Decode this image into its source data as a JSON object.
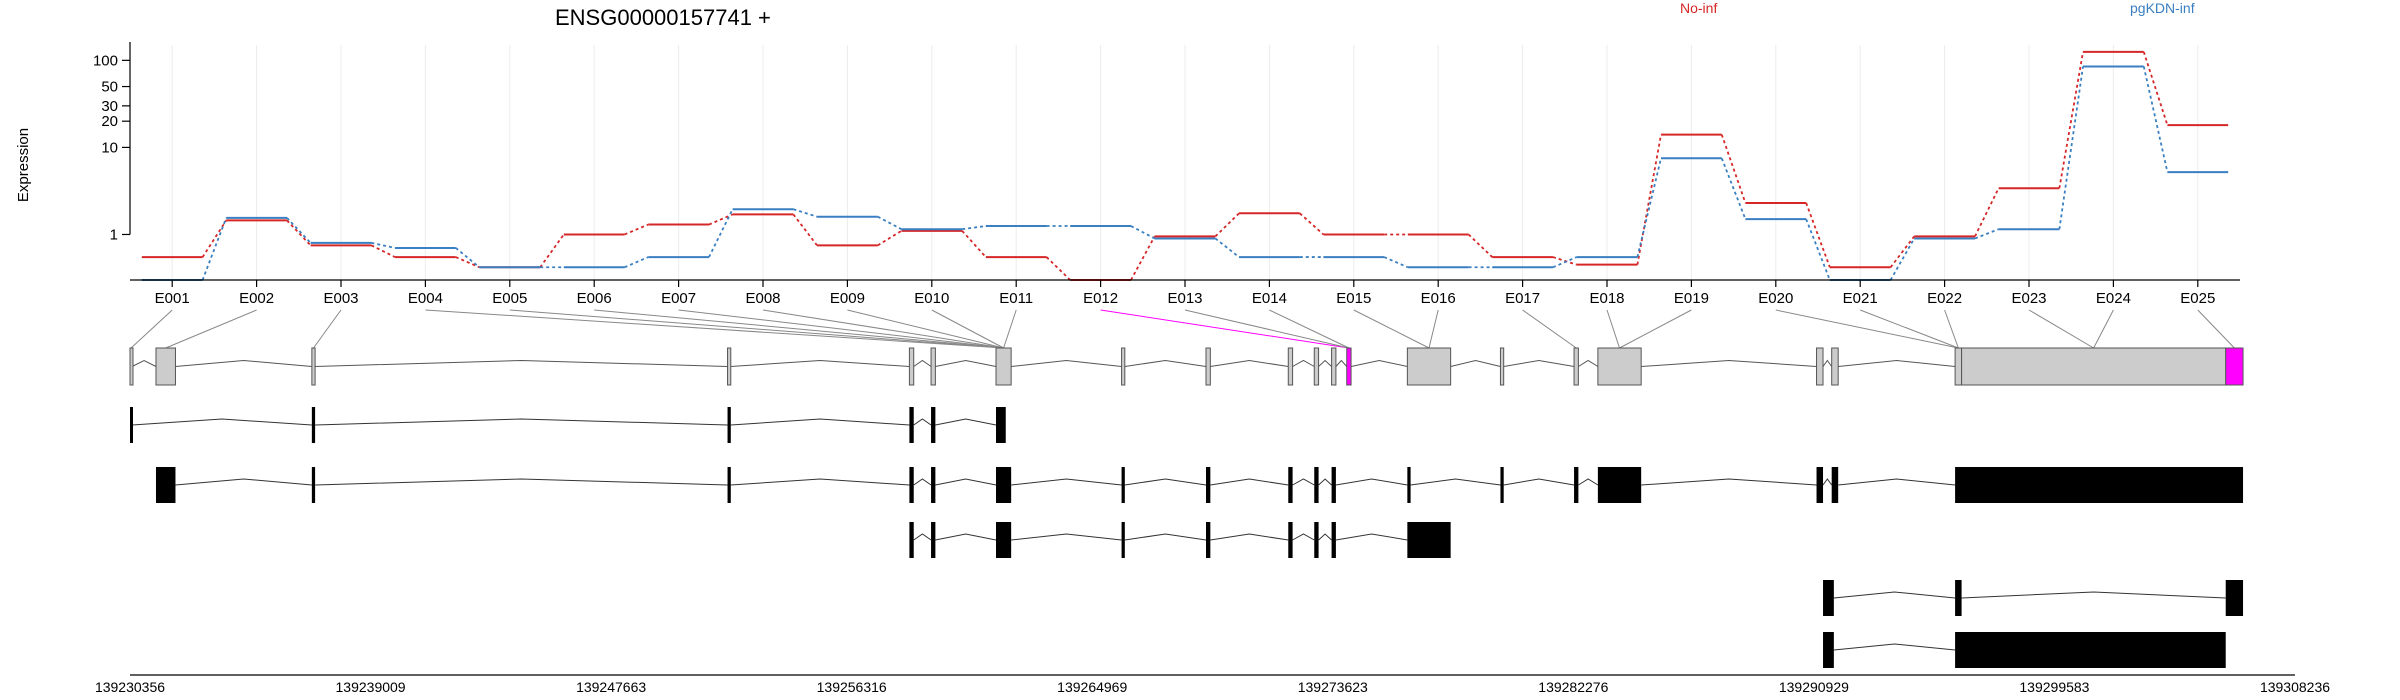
{
  "title": "ENSG00000157741 +",
  "ylabel": "Expression",
  "legend": [
    {
      "name": "No-inf",
      "color": "#d62728"
    },
    {
      "name": "pgKDN-inf",
      "color": "#3a7fc1"
    }
  ],
  "highlight_color": "#ff00ff",
  "chart_data": {
    "type": "line",
    "scale_y": "log",
    "ylim": [
      0.3,
      150
    ],
    "y_ticks": [
      1,
      10,
      20,
      30,
      50,
      100
    ],
    "grid": "vertical",
    "categories": [
      "E001",
      "E002",
      "E003",
      "E004",
      "E005",
      "E006",
      "E007",
      "E008",
      "E009",
      "E010",
      "E011",
      "E012",
      "E013",
      "E014",
      "E015",
      "E016",
      "E017",
      "E018",
      "E019",
      "E020",
      "E021",
      "E022",
      "E023",
      "E024",
      "E025"
    ],
    "series": [
      {
        "name": "No-inf",
        "color": "#d62728",
        "values": [
          0.55,
          1.45,
          0.75,
          0.55,
          0.42,
          1.0,
          1.3,
          1.7,
          0.75,
          1.1,
          0.55,
          0.3,
          0.95,
          1.75,
          1.0,
          1.0,
          0.55,
          0.45,
          14.0,
          2.3,
          0.42,
          0.95,
          3.4,
          125,
          18
        ]
      },
      {
        "name": "pgKDN-inf",
        "color": "#3a7fc1",
        "values": [
          0.3,
          1.55,
          0.8,
          0.7,
          0.42,
          0.42,
          0.55,
          1.95,
          1.6,
          1.15,
          1.25,
          1.25,
          0.9,
          0.55,
          0.55,
          0.42,
          0.42,
          0.55,
          7.5,
          1.5,
          0.3,
          0.9,
          1.15,
          85,
          5.2
        ]
      }
    ],
    "highlighted_exon": "E012",
    "genomic_coordinates": [
      "139230356",
      "139239009",
      "139247663",
      "139256316",
      "139264969",
      "139273623",
      "139282276",
      "139290929",
      "139299583",
      "139308236"
    ],
    "gene_model_exons": [
      {
        "start": 0.0,
        "end": 0.001
      },
      {
        "start": 0.012,
        "end": 0.021
      },
      {
        "start": 0.084,
        "end": 0.0855
      },
      {
        "start": 0.276,
        "end": 0.2775
      },
      {
        "start": 0.36,
        "end": 0.362
      },
      {
        "start": 0.37,
        "end": 0.372
      },
      {
        "start": 0.4,
        "end": 0.407
      },
      {
        "start": 0.458,
        "end": 0.4595
      },
      {
        "start": 0.497,
        "end": 0.499
      },
      {
        "start": 0.535,
        "end": 0.537
      },
      {
        "start": 0.547,
        "end": 0.549
      },
      {
        "start": 0.555,
        "end": 0.557
      },
      {
        "start": 0.562,
        "end": 0.564
      },
      {
        "start": 0.59,
        "end": 0.61
      },
      {
        "start": 0.633,
        "end": 0.6345
      },
      {
        "start": 0.667,
        "end": 0.669
      },
      {
        "start": 0.678,
        "end": 0.698
      },
      {
        "start": 0.779,
        "end": 0.782
      },
      {
        "start": 0.786,
        "end": 0.789
      },
      {
        "start": 0.843,
        "end": 0.846
      },
      {
        "start": 0.846,
        "end": 0.968
      },
      {
        "start": 0.968,
        "end": 0.976
      }
    ],
    "transcripts": [
      {
        "exons": [
          [
            0.0,
            0.001
          ],
          [
            0.084,
            0.0855
          ],
          [
            0.276,
            0.2775
          ],
          [
            0.36,
            0.362
          ],
          [
            0.37,
            0.372
          ],
          [
            0.4,
            0.4045
          ]
        ]
      },
      {
        "exons": [
          [
            0.012,
            0.021
          ],
          [
            0.084,
            0.0855
          ],
          [
            0.276,
            0.2775
          ],
          [
            0.36,
            0.362
          ],
          [
            0.37,
            0.372
          ],
          [
            0.4,
            0.407
          ],
          [
            0.458,
            0.4595
          ],
          [
            0.497,
            0.499
          ],
          [
            0.535,
            0.537
          ],
          [
            0.547,
            0.549
          ],
          [
            0.555,
            0.557
          ],
          [
            0.59,
            0.5915
          ],
          [
            0.633,
            0.6345
          ],
          [
            0.667,
            0.669
          ],
          [
            0.678,
            0.698
          ],
          [
            0.779,
            0.782
          ],
          [
            0.786,
            0.789
          ],
          [
            0.843,
            0.976
          ]
        ]
      },
      {
        "exons": [
          [
            0.36,
            0.362
          ],
          [
            0.37,
            0.372
          ],
          [
            0.4,
            0.407
          ],
          [
            0.458,
            0.4595
          ],
          [
            0.497,
            0.499
          ],
          [
            0.535,
            0.537
          ],
          [
            0.547,
            0.549
          ],
          [
            0.555,
            0.557
          ],
          [
            0.59,
            0.61
          ]
        ]
      },
      {
        "exons": [
          [
            0.782,
            0.787
          ],
          [
            0.843,
            0.846
          ],
          [
            0.968,
            0.976
          ]
        ]
      },
      {
        "exons": [
          [
            0.782,
            0.787
          ],
          [
            0.843,
            0.968
          ]
        ]
      }
    ]
  }
}
